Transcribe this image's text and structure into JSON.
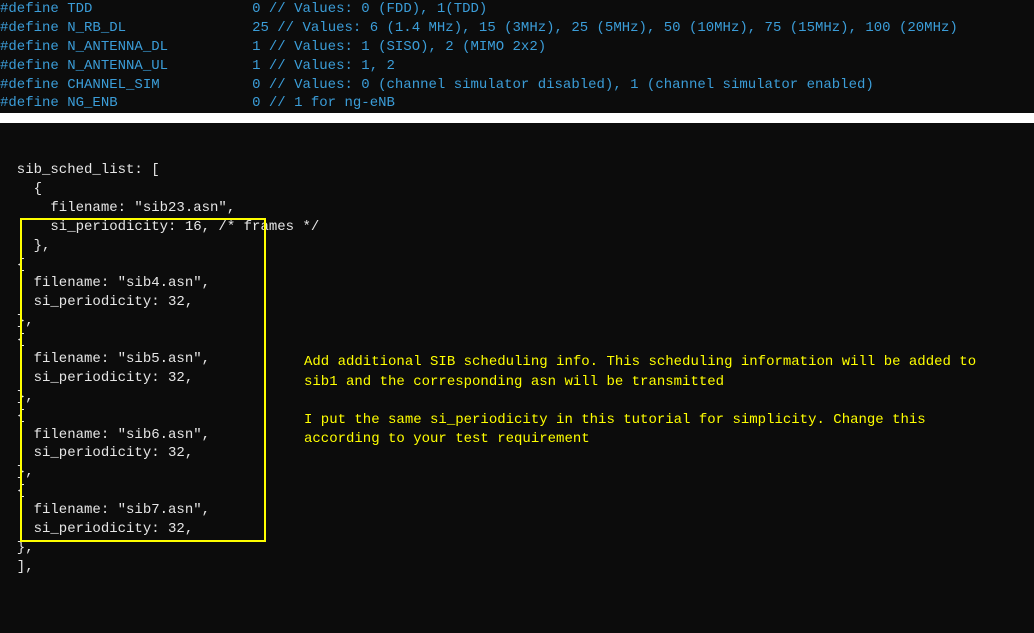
{
  "defines": [
    {
      "name": "TDD",
      "pad": "                   ",
      "value": "0",
      "comment": "// Values: 0 (FDD), 1(TDD)"
    },
    {
      "name": "N_RB_DL",
      "pad": "               ",
      "value": "25",
      "comment": "// Values: 6 (1.4 MHz), 15 (3MHz), 25 (5MHz), 50 (10MHz), 75 (15MHz), 100 (20MHz)"
    },
    {
      "name": "N_ANTENNA_DL",
      "pad": "          ",
      "value": "1",
      "comment": "// Values: 1 (SISO), 2 (MIMO 2x2)"
    },
    {
      "name": "N_ANTENNA_UL",
      "pad": "          ",
      "value": "1",
      "comment": "// Values: 1, 2"
    },
    {
      "name": "CHANNEL_SIM",
      "pad": "           ",
      "value": "0",
      "comment": "// Values: 0 (channel simulator disabled), 1 (channel simulator enabled)"
    },
    {
      "name": "NG_ENB",
      "pad": "                ",
      "value": "0",
      "comment": "// 1 for ng-eNB"
    }
  ],
  "code": {
    "lines": [
      "  sib_sched_list: [",
      "    {",
      "      filename: \"sib23.asn\",",
      "      si_periodicity: 16, /* frames */",
      "    },",
      "  {",
      "    filename: \"sib4.asn\",",
      "    si_periodicity: 32,",
      "  },",
      "  {",
      "    filename: \"sib5.asn\",",
      "    si_periodicity: 32,",
      "  },",
      "  {",
      "    filename: \"sib6.asn\",",
      "    si_periodicity: 32,",
      "  },",
      "  {",
      "    filename: \"sib7.asn\",",
      "    si_periodicity: 32,",
      "  },",
      "  ],"
    ]
  },
  "annotation": {
    "p1": "Add additional SIB scheduling info. This scheduling information will be added to sib1 and the corresponding asn will be transmitted",
    "p2": "I put the same si_periodicity in this tutorial for simplicity. Change this according to your test requirement"
  },
  "colors": {
    "bg": "#0c0c0c",
    "blue": "#3b9dd8",
    "white": "#e6e6e6",
    "yellow": "#ffff00",
    "divider": "#ffffff"
  }
}
